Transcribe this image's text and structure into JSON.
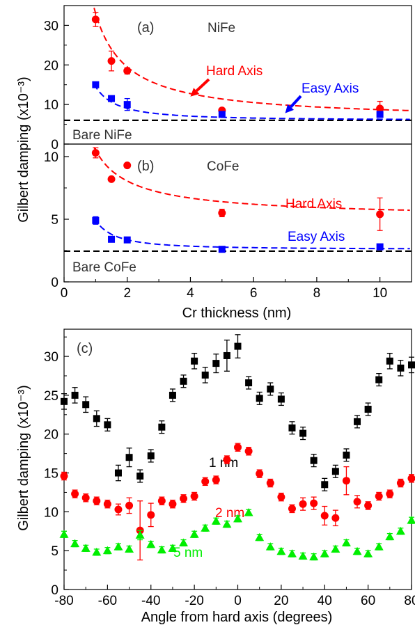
{
  "chart_data": [
    {
      "type": "scatter",
      "panel_label": "(a)",
      "material": "NiFe",
      "ylabel": "Gilbert damping  (x10⁻³)",
      "xlim": [
        0,
        11
      ],
      "ylim": [
        0,
        35
      ],
      "yticks": [
        0,
        10,
        20,
        30
      ],
      "series": [
        {
          "name": "Hard Axis",
          "color": "#ff0000",
          "marker": "circle",
          "x": [
            1.0,
            1.5,
            2.0,
            5.0,
            10.0
          ],
          "y": [
            31.5,
            21.0,
            18.5,
            8.5,
            9.0
          ],
          "yerr": [
            1.8,
            2.5,
            0.8,
            0.5,
            1.8
          ]
        },
        {
          "name": "Easy Axis",
          "color": "#0000ff",
          "marker": "square",
          "x": [
            1.0,
            1.5,
            2.0,
            5.0,
            10.0
          ],
          "y": [
            15.0,
            11.5,
            10.0,
            7.5,
            7.5
          ],
          "yerr": [
            0.6,
            0.5,
            1.5,
            0.3,
            0.5
          ]
        }
      ],
      "fits": [
        {
          "color": "#ff0000",
          "base": 6.0,
          "amp": 27.0,
          "exp": 1.0,
          "x0": 0.95
        },
        {
          "color": "#0000ff",
          "base": 6.0,
          "amp": 8.5,
          "exp": 1.5,
          "x0": 0.95
        }
      ],
      "baseline": {
        "label": "Bare NiFe",
        "y": 6.0
      },
      "annotations": [
        {
          "text": "Hard Axis",
          "color": "#ff0000",
          "arrow_to": [
            4.0,
            12.0
          ]
        },
        {
          "text": "Easy Axis",
          "color": "#0000ff",
          "arrow_to": [
            7.0,
            7.8
          ]
        }
      ]
    },
    {
      "type": "scatter",
      "panel_label": "(b)",
      "material": "CoFe",
      "xlabel": "Cr thickness (nm)",
      "xlim": [
        0,
        11
      ],
      "ylim": [
        0,
        11
      ],
      "xticks": [
        0,
        2,
        4,
        6,
        8,
        10
      ],
      "yticks": [
        0,
        5,
        10
      ],
      "series": [
        {
          "name": "Hard Axis",
          "color": "#ff0000",
          "marker": "circle",
          "x": [
            1.0,
            1.5,
            2.0,
            5.0,
            10.0
          ],
          "y": [
            10.3,
            8.2,
            9.3,
            5.5,
            5.4
          ],
          "yerr": [
            0.4,
            0.1,
            0.1,
            0.3,
            1.3
          ]
        },
        {
          "name": "Easy Axis",
          "color": "#0000ff",
          "marker": "square",
          "x": [
            1.0,
            1.5,
            2.0,
            5.0,
            10.0
          ],
          "y": [
            4.9,
            3.4,
            3.35,
            2.6,
            2.8
          ],
          "yerr": [
            0.3,
            0.1,
            0.1,
            0.1,
            0.15
          ]
        }
      ],
      "fits": [
        {
          "color": "#ff0000",
          "base": 5.0,
          "amp": 5.5,
          "exp": 0.85,
          "x0": 0.95
        },
        {
          "color": "#0000ff",
          "base": 2.6,
          "amp": 2.3,
          "exp": 1.6,
          "x0": 0.95
        }
      ],
      "baseline": {
        "label": "Bare CoFe",
        "y": 2.45
      },
      "annotations": [
        {
          "text": "Hard Axis",
          "color": "#ff0000"
        },
        {
          "text": "Easy Axis",
          "color": "#0000ff"
        }
      ]
    },
    {
      "type": "scatter",
      "panel_label": "(c)",
      "xlabel": "Angle from hard axis (degrees)",
      "ylabel": "Gilbert damping  (x10⁻³)",
      "xlim": [
        -80,
        80
      ],
      "ylim": [
        0,
        33.5
      ],
      "xticks": [
        -80,
        -60,
        -40,
        -20,
        0,
        20,
        40,
        60,
        80
      ],
      "yticks": [
        0,
        5,
        10,
        15,
        20,
        25,
        30
      ],
      "series": [
        {
          "name": "1 nm",
          "color": "#000000",
          "marker": "square",
          "x": [
            -80,
            -75,
            -70,
            -65,
            -60,
            -55,
            -50,
            -45,
            -40,
            -35,
            -30,
            -25,
            -20,
            -15,
            -10,
            -5,
            0,
            5,
            10,
            15,
            20,
            25,
            30,
            35,
            40,
            45,
            50,
            55,
            60,
            65,
            70,
            75,
            80
          ],
          "y": [
            24.2,
            25.0,
            23.8,
            22.0,
            21.2,
            15.0,
            17.0,
            14.6,
            17.2,
            20.9,
            25.0,
            26.8,
            29.4,
            27.6,
            29.1,
            30.1,
            31.3,
            26.6,
            24.6,
            25.8,
            24.5,
            20.8,
            20.1,
            16.6,
            13.5,
            15.2,
            17.3,
            21.6,
            23.2,
            27.0,
            29.4,
            28.5,
            28.9
          ],
          "yerr": [
            1.0,
            1.0,
            1.0,
            1.0,
            0.8,
            1.0,
            1.2,
            0.8,
            0.8,
            0.8,
            0.8,
            0.8,
            1.0,
            1.0,
            1.2,
            2.0,
            1.5,
            0.8,
            0.8,
            0.8,
            0.8,
            0.8,
            0.8,
            0.8,
            0.8,
            0.8,
            0.8,
            0.8,
            0.8,
            0.8,
            1.0,
            1.0,
            1.0
          ]
        },
        {
          "name": "2 nm",
          "color": "#ff0000",
          "marker": "circle",
          "x": [
            -80,
            -75,
            -70,
            -65,
            -60,
            -55,
            -50,
            -45,
            -40,
            -35,
            -30,
            -25,
            -20,
            -15,
            -10,
            -5,
            0,
            5,
            10,
            15,
            20,
            25,
            30,
            35,
            40,
            45,
            50,
            55,
            60,
            65,
            70,
            75,
            80
          ],
          "y": [
            14.6,
            12.3,
            11.8,
            11.4,
            11.0,
            10.3,
            10.8,
            7.6,
            9.6,
            11.4,
            11.0,
            11.7,
            12.0,
            13.9,
            14.1,
            16.7,
            18.3,
            17.8,
            14.9,
            13.7,
            11.9,
            10.4,
            11.0,
            11.1,
            9.5,
            9.2,
            14.0,
            11.3,
            10.8,
            12.0,
            12.3,
            13.7,
            14.3
          ],
          "yerr": [
            0.5,
            0.5,
            0.5,
            0.5,
            0.5,
            0.7,
            1.0,
            3.8,
            1.5,
            0.5,
            0.5,
            0.5,
            0.5,
            0.5,
            0.5,
            0.5,
            0.5,
            0.5,
            0.5,
            0.5,
            0.5,
            0.5,
            0.8,
            0.8,
            1.2,
            1.0,
            1.8,
            0.8,
            0.5,
            0.5,
            0.5,
            0.5,
            0.5
          ]
        },
        {
          "name": "5 nm",
          "color": "#00ee00",
          "marker": "triangle",
          "x": [
            -80,
            -75,
            -70,
            -65,
            -60,
            -55,
            -50,
            -45,
            -40,
            -35,
            -30,
            -25,
            -20,
            -15,
            -10,
            -5,
            0,
            5,
            10,
            15,
            20,
            25,
            30,
            35,
            40,
            45,
            50,
            55,
            60,
            65,
            70,
            75,
            80
          ],
          "y": [
            7.1,
            5.9,
            5.3,
            4.8,
            5.0,
            5.5,
            5.2,
            7.0,
            5.8,
            5.1,
            5.3,
            6.0,
            7.1,
            7.9,
            8.8,
            8.4,
            9.1,
            9.9,
            6.7,
            5.5,
            4.9,
            4.6,
            4.3,
            4.2,
            4.6,
            5.2,
            6.0,
            4.9,
            4.6,
            5.5,
            6.8,
            7.5,
            8.9
          ],
          "yerr": [
            0.4,
            0.4,
            0.4,
            0.4,
            0.4,
            0.4,
            0.4,
            0.6,
            0.4,
            0.4,
            0.4,
            0.4,
            0.4,
            0.4,
            0.4,
            0.4,
            0.4,
            0.4,
            0.4,
            0.4,
            0.4,
            0.4,
            0.4,
            0.4,
            0.4,
            0.4,
            0.4,
            0.4,
            0.4,
            0.4,
            0.4,
            0.4,
            0.4
          ]
        }
      ]
    }
  ]
}
